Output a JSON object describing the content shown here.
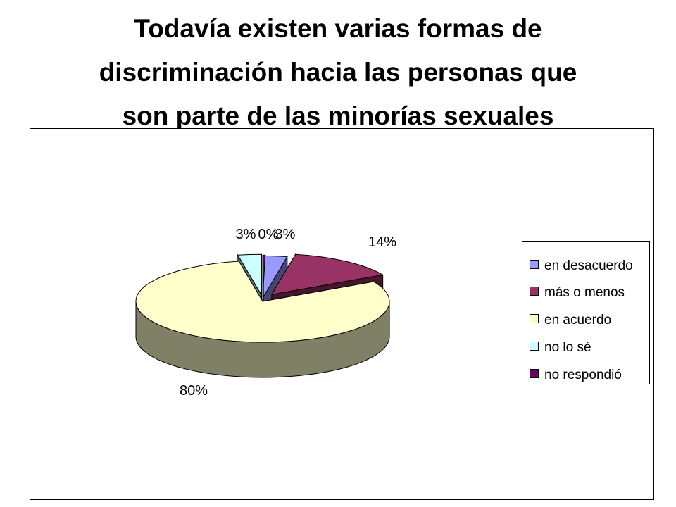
{
  "title": {
    "line1": "Todavía existen varias formas de",
    "line2": "discriminación hacia las personas que",
    "line3": "son parte de las minorías sexuales"
  },
  "chart_data": {
    "type": "pie",
    "categories": [
      "en desacuerdo",
      "más o menos",
      "en acuerdo",
      "no lo sé",
      "no respondió"
    ],
    "values": [
      3,
      14,
      80,
      3,
      0
    ],
    "value_labels": [
      "3%",
      "14%",
      "80%",
      "3%",
      "0%"
    ],
    "colors": [
      "#9999ff",
      "#993366",
      "#ffffcc",
      "#ccffff",
      "#660066"
    ],
    "exploded": true,
    "three_d": true,
    "legend_position": "right"
  }
}
